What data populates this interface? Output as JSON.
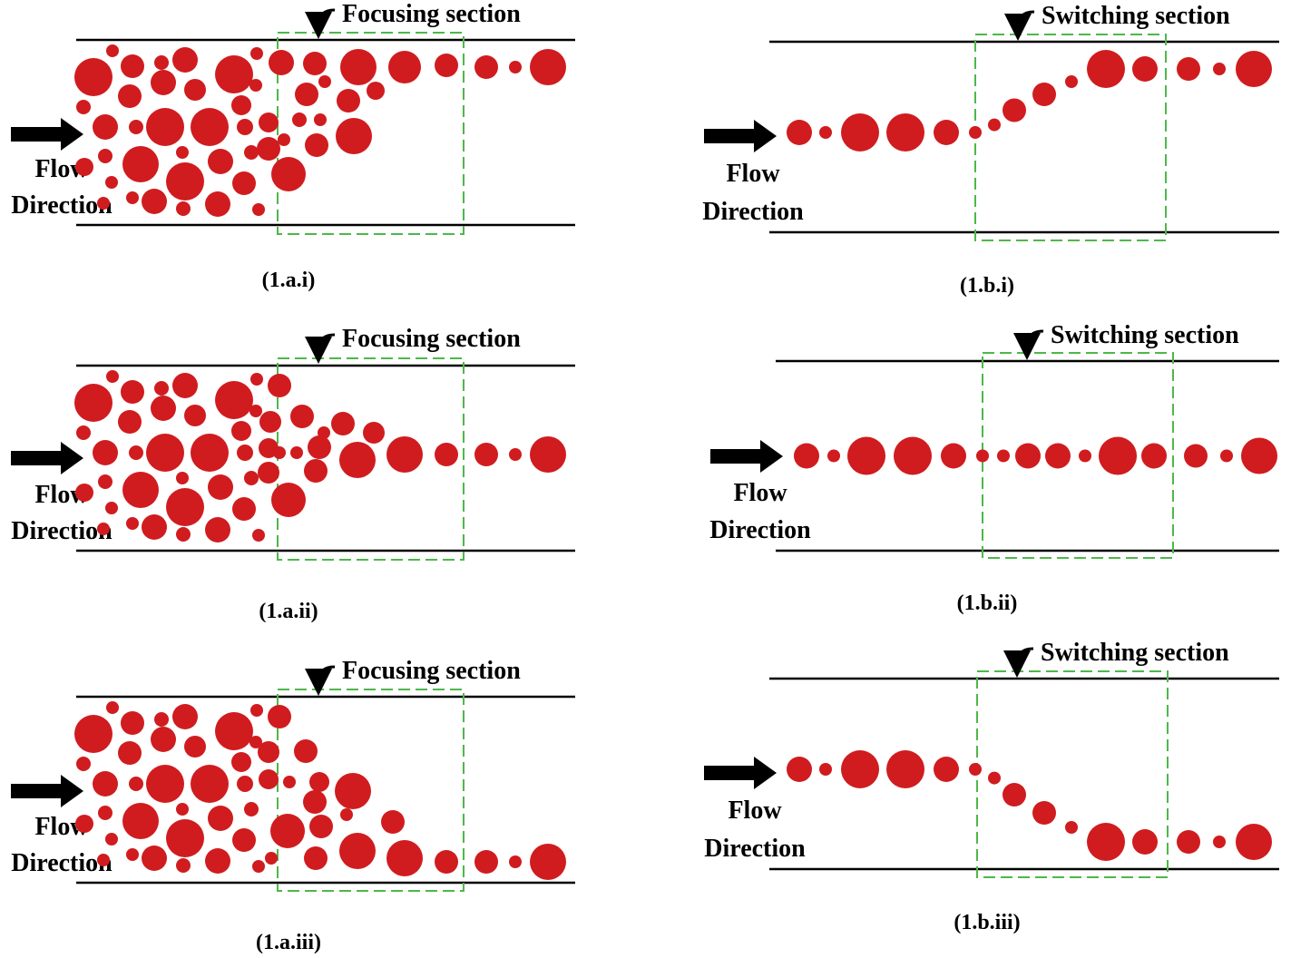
{
  "colors": {
    "droplet": "#d01c1f",
    "box": "#4db848",
    "wall": "#000000",
    "background": "#ffffff"
  },
  "flow_label": {
    "line1": "Flow",
    "line2": "Direction"
  },
  "section_labels": {
    "focusing": "Focusing section",
    "switching": "Switching section"
  },
  "panels": [
    {
      "id": "1a-i",
      "caption": "(1.a.i)",
      "kind": "focusing",
      "outlet": "top"
    },
    {
      "id": "1a-ii",
      "caption": "(1.a.ii)",
      "kind": "focusing",
      "outlet": "middle"
    },
    {
      "id": "1a-iii",
      "caption": "(1.a.iii)",
      "kind": "focusing",
      "outlet": "bottom"
    },
    {
      "id": "1b-i",
      "caption": "(1.b.i)",
      "kind": "switching",
      "outlet": "top"
    },
    {
      "id": "1b-ii",
      "caption": "(1.b.ii)",
      "kind": "switching",
      "outlet": "middle"
    },
    {
      "id": "1b-iii",
      "caption": "(1.b.iii)",
      "kind": "switching",
      "outlet": "bottom"
    }
  ]
}
